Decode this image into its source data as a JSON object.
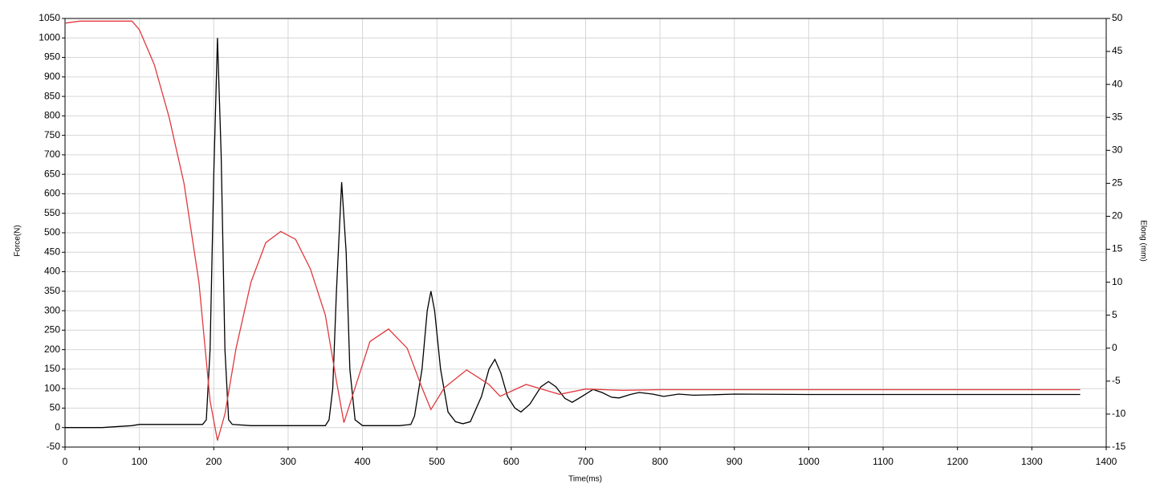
{
  "chart_data": {
    "type": "line",
    "x_label": "Time(ms)",
    "y_label": "Force(N)",
    "y2_label": "Elong (mm)",
    "xlim": [
      0,
      1400
    ],
    "xticks": [
      0,
      100,
      200,
      300,
      400,
      500,
      600,
      700,
      800,
      900,
      1000,
      1100,
      1200,
      1300,
      1400
    ],
    "ylim": [
      -50,
      1050
    ],
    "yticks": [
      -50,
      0,
      50,
      100,
      150,
      200,
      250,
      300,
      350,
      400,
      450,
      500,
      550,
      600,
      650,
      700,
      750,
      800,
      850,
      900,
      950,
      1000,
      1050
    ],
    "y2lim": [
      -15,
      50
    ],
    "y2ticks": [
      -15,
      -10,
      -5,
      0,
      5,
      10,
      15,
      20,
      25,
      30,
      35,
      40,
      45,
      50
    ],
    "grid": true,
    "series": [
      {
        "name": "Force",
        "color": "#000000",
        "x": [
          0,
          50,
          90,
          100,
          150,
          185,
          190,
          195,
          200,
          205,
          210,
          215,
          220,
          225,
          250,
          300,
          350,
          355,
          360,
          365,
          372,
          378,
          383,
          390,
          400,
          450,
          465,
          470,
          480,
          487,
          492,
          497,
          505,
          515,
          525,
          535,
          545,
          560,
          570,
          578,
          586,
          595,
          605,
          613,
          625,
          640,
          650,
          660,
          672,
          682,
          695,
          710,
          722,
          735,
          745,
          760,
          772,
          790,
          805,
          825,
          845,
          870,
          900,
          1000,
          1100,
          1200,
          1300,
          1365
        ],
        "values": [
          0,
          0,
          5,
          8,
          8,
          8,
          20,
          200,
          650,
          1000,
          700,
          200,
          20,
          8,
          5,
          5,
          5,
          20,
          100,
          350,
          630,
          450,
          150,
          20,
          5,
          5,
          8,
          30,
          150,
          300,
          350,
          300,
          150,
          40,
          15,
          10,
          15,
          80,
          150,
          175,
          140,
          80,
          50,
          40,
          60,
          105,
          118,
          105,
          75,
          65,
          80,
          98,
          90,
          78,
          76,
          85,
          90,
          86,
          80,
          86,
          83,
          84,
          86,
          85,
          85,
          85,
          85,
          85
        ]
      },
      {
        "name": "Elong",
        "color": "#e0393e",
        "axis": "y2",
        "x": [
          0,
          20,
          90,
          100,
          120,
          140,
          160,
          180,
          195,
          205,
          215,
          230,
          250,
          270,
          290,
          310,
          330,
          350,
          365,
          375,
          390,
          410,
          435,
          460,
          480,
          492,
          510,
          540,
          570,
          585,
          620,
          650,
          665,
          700,
          750,
          800,
          900,
          1000,
          1100,
          1200,
          1300,
          1365
        ],
        "values": [
          49.3,
          49.6,
          49.6,
          48.3,
          43,
          35,
          25,
          10,
          -8,
          -14,
          -10,
          0,
          10,
          16,
          17.7,
          16.5,
          12,
          5,
          -5,
          -11.3,
          -6,
          1,
          2.9,
          0,
          -6,
          -9.3,
          -6,
          -3.3,
          -5.5,
          -7.3,
          -5.5,
          -6.5,
          -7,
          -6.2,
          -6.4,
          -6.3,
          -6.3,
          -6.3,
          -6.3,
          -6.3,
          -6.3,
          -6.3
        ]
      }
    ]
  }
}
